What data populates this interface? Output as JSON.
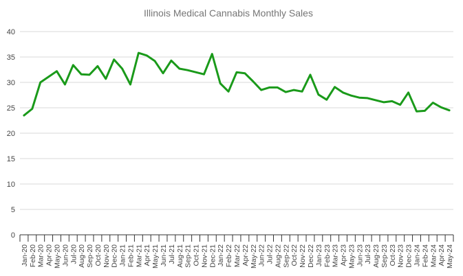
{
  "chart_data": {
    "type": "line",
    "title": "Illinois Medical Cannabis Monthly Sales",
    "xlabel": "",
    "ylabel": "",
    "ylim": [
      0,
      40
    ],
    "yticks": [
      "0",
      "5",
      "10",
      "15",
      "20",
      "25",
      "30",
      "35",
      "40"
    ],
    "grid": true,
    "legend": "none",
    "categories": [
      "Jan-20",
      "Feb-20",
      "Mar-20",
      "Apr-20",
      "May-20",
      "Jun-20",
      "Jul-20",
      "Aug-20",
      "Sep-20",
      "Oct-20",
      "Nov-20",
      "Dec-20",
      "Jan-21",
      "Feb-21",
      "Mar-21",
      "Apr-21",
      "May-21",
      "Jun-21",
      "Jul-21",
      "Aug-21",
      "Sep-21",
      "Oct-21",
      "Nov-21",
      "Dec-21",
      "Jan-22",
      "Feb-22",
      "Mar-22",
      "Apr-22",
      "May-22",
      "Jun-22",
      "Jul-22",
      "Aug-22",
      "Sep-22",
      "Oct-22",
      "Nov-22",
      "Dec-22",
      "Jan-23",
      "Feb-23",
      "Mar-23",
      "Apr-23",
      "May-23",
      "Jun-23",
      "Jul-23",
      "Aug-23",
      "Sep-23",
      "Oct-23",
      "Nov-23",
      "Dec-23",
      "Jan-24",
      "Feb-24",
      "Mar-24",
      "Apr-24",
      "May-24"
    ],
    "series": [
      {
        "name": "Monthly Sales",
        "color": "#1a9a1a",
        "values": [
          23.5,
          24.8,
          30.0,
          31.1,
          32.2,
          29.6,
          33.4,
          31.6,
          31.5,
          33.2,
          30.7,
          34.5,
          32.7,
          29.6,
          35.8,
          35.3,
          34.2,
          31.8,
          34.3,
          32.7,
          32.4,
          32.0,
          31.6,
          35.6,
          29.8,
          28.2,
          32.0,
          31.8,
          30.2,
          28.5,
          29.0,
          29.0,
          28.1,
          28.5,
          28.2,
          31.5,
          27.6,
          26.6,
          29.1,
          28.0,
          27.4,
          27.0,
          26.9,
          26.5,
          26.1,
          26.3,
          25.6,
          28.0,
          24.3,
          24.4,
          26.0,
          25.1,
          24.5
        ]
      }
    ]
  }
}
